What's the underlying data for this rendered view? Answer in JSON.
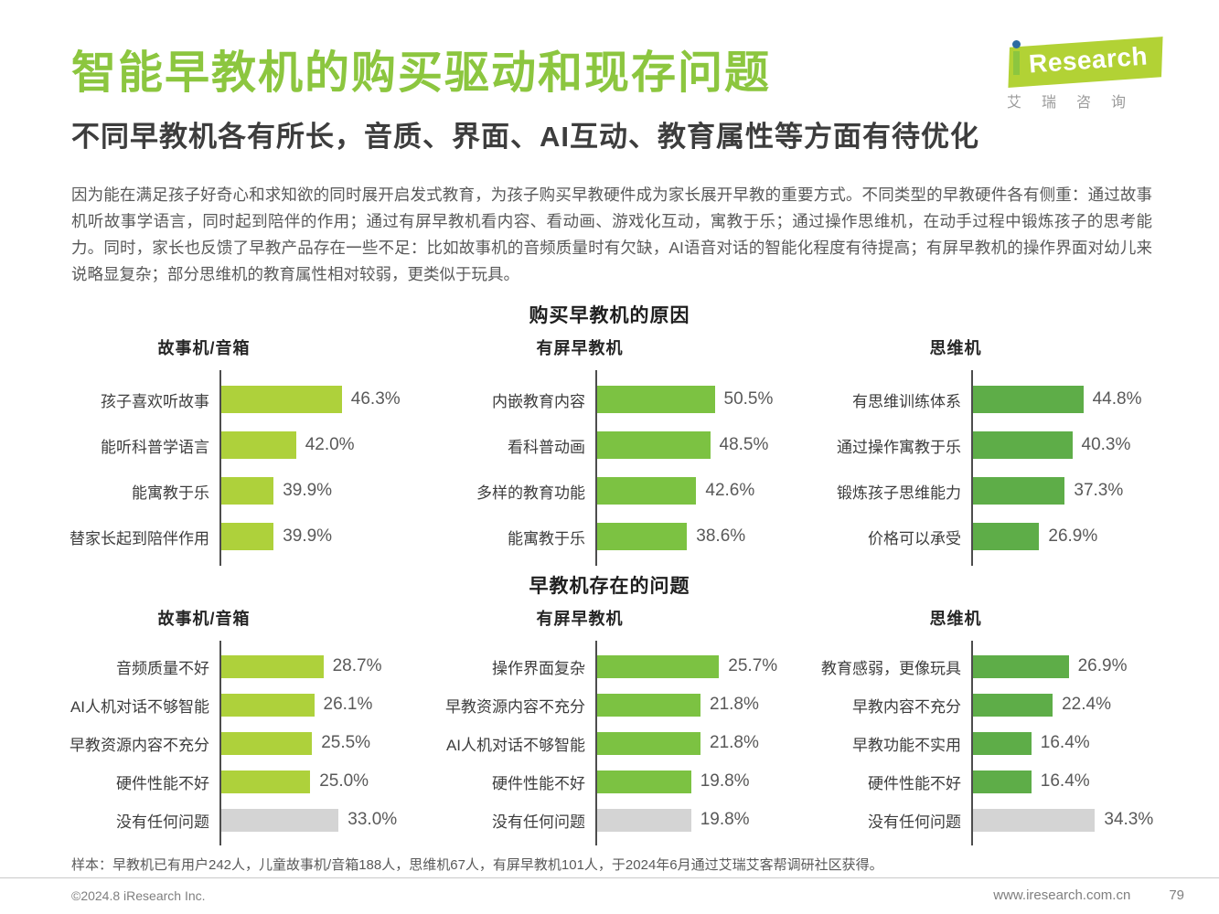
{
  "page": {
    "title": "智能早教机的购买驱动和现存问题",
    "subtitle": "不同早教机各有所长，音质、界面、AI互动、教育属性等方面有待优化",
    "paragraph": "因为能在满足孩子好奇心和求知欲的同时展开启发式教育，为孩子购买早教硬件成为家长展开早教的重要方式。不同类型的早教硬件各有侧重：通过故事机听故事学语言，同时起到陪伴的作用；通过有屏早教机看内容、看动画、游戏化互动，寓教于乐；通过操作思维机，在动手过程中锻炼孩子的思考能力。同时，家长也反馈了早教产品存在一些不足：比如故事机的音频质量时有欠缺，AI语音对话的智能化程度有待提高；有屏早教机的操作界面对幼儿来说略显复杂；部分思维机的教育属性相对较弱，更类似于玩具。",
    "sample_note": "样本：早教机已有用户242人，儿童故事机/音箱188人，思维机67人，有屏早教机101人，于2024年6月通过艾瑞艾客帮调研社区获得。"
  },
  "logo": {
    "brand_i": "i",
    "brand_rest": "Research",
    "brand_cn": "艾瑞咨询"
  },
  "footer": {
    "copyright": "©2024.8 iResearch Inc.",
    "website": "www.iresearch.com.cn",
    "page_number": "79"
  },
  "colors": {
    "title_green": "#8CC63F",
    "logo_green": "#b2d235",
    "logo_dot_blue": "#2d6ca2",
    "bar_yellow_green": "#aed13b",
    "bar_medium_green": "#7cc242",
    "bar_dark_green": "#5ead48",
    "bar_gray": "#d4d4d4",
    "axis_gray": "#4d4d4d"
  },
  "chart_data": [
    {
      "type": "bar",
      "orientation": "horizontal",
      "title": "购买早教机的原因",
      "unit": "%",
      "grid": false,
      "legend_position": "none",
      "groups": [
        {
          "name": "故事机/音箱",
          "bar_color": "#aed13b",
          "axis_range": [
            35,
            47
          ],
          "items": [
            {
              "label": "孩子喜欢听故事",
              "value": 46.3
            },
            {
              "label": "能听科普学语言",
              "value": 42.0
            },
            {
              "label": "能寓教于乐",
              "value": 39.9
            },
            {
              "label": "替家长起到陪伴作用",
              "value": 39.9
            }
          ]
        },
        {
          "name": "有屏早教机",
          "bar_color": "#7cc242",
          "axis_range": [
            0,
            55
          ],
          "items": [
            {
              "label": "内嵌教育内容",
              "value": 50.5
            },
            {
              "label": "看科普动画",
              "value": 48.5
            },
            {
              "label": "多样的教育功能",
              "value": 42.6
            },
            {
              "label": "能寓教于乐",
              "value": 38.6
            }
          ]
        },
        {
          "name": "思维机",
          "bar_color": "#5ead48",
          "axis_range": [
            0,
            52
          ],
          "items": [
            {
              "label": "有思维训练体系",
              "value": 44.8
            },
            {
              "label": "通过操作寓教于乐",
              "value": 40.3
            },
            {
              "label": "锻炼孩子思维能力",
              "value": 37.3
            },
            {
              "label": "价格可以承受",
              "value": 26.9
            }
          ]
        }
      ]
    },
    {
      "type": "bar",
      "orientation": "horizontal",
      "title": "早教机存在的问题",
      "unit": "%",
      "grid": false,
      "legend_position": "none",
      "groups": [
        {
          "name": "故事机/音箱",
          "bar_color": "#aed13b",
          "axis_range": [
            0,
            36
          ],
          "items": [
            {
              "label": "音频质量不好",
              "value": 28.7
            },
            {
              "label": "AI人机对话不够智能",
              "value": 26.1
            },
            {
              "label": "早教资源内容不充分",
              "value": 25.5
            },
            {
              "label": "硬件性能不好",
              "value": 25.0
            },
            {
              "label": "没有任何问题",
              "value": 33.0,
              "color": "#d4d4d4"
            }
          ]
        },
        {
          "name": "有屏早教机",
          "bar_color": "#7cc242",
          "axis_range": [
            0,
            27
          ],
          "items": [
            {
              "label": "操作界面复杂",
              "value": 25.7
            },
            {
              "label": "早教资源内容不充分",
              "value": 21.8
            },
            {
              "label": "AI人机对话不够智能",
              "value": 21.8
            },
            {
              "label": "硬件性能不好",
              "value": 19.8
            },
            {
              "label": "没有任何问题",
              "value": 19.8,
              "color": "#d4d4d4"
            }
          ]
        },
        {
          "name": "思维机",
          "bar_color": "#5ead48",
          "axis_range": [
            0,
            36
          ],
          "items": [
            {
              "label": "教育感弱，更像玩具",
              "value": 26.9
            },
            {
              "label": "早教内容不充分",
              "value": 22.4
            },
            {
              "label": "早教功能不实用",
              "value": 16.4
            },
            {
              "label": "硬件性能不好",
              "value": 16.4
            },
            {
              "label": "没有任何问题",
              "value": 34.3,
              "color": "#d4d4d4"
            }
          ]
        }
      ]
    }
  ]
}
